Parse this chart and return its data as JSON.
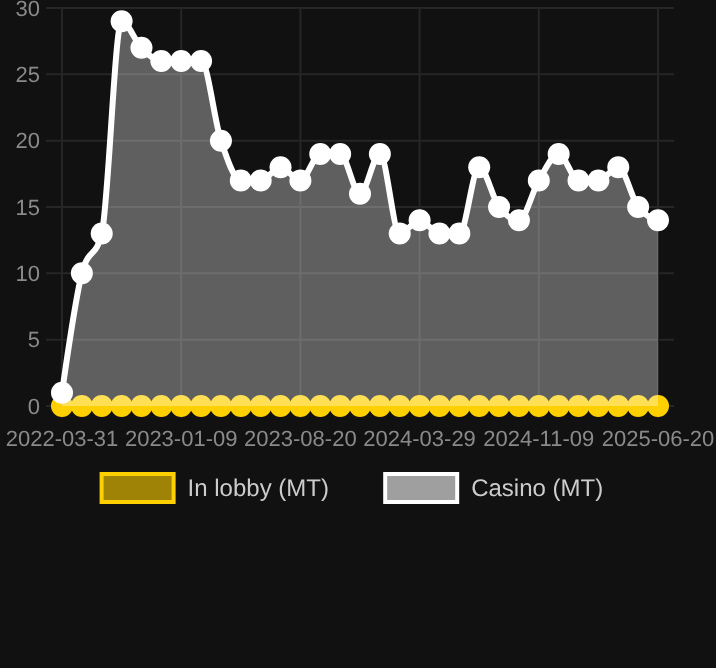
{
  "chart_data": {
    "type": "area",
    "categories": [
      "2022-03-31",
      null,
      null,
      null,
      null,
      null,
      "2023-01-09",
      null,
      null,
      null,
      null,
      null,
      "2023-08-20",
      null,
      null,
      null,
      null,
      null,
      "2024-03-29",
      null,
      null,
      null,
      null,
      null,
      "2024-11-09",
      null,
      null,
      null,
      null,
      null,
      "2025-06-20"
    ],
    "series": [
      {
        "name": "In lobby (MT)",
        "type": "scatter",
        "color": "#ffd000",
        "values": [
          0,
          0,
          0,
          0,
          0,
          0,
          0,
          0,
          0,
          0,
          0,
          0,
          0,
          0,
          0,
          0,
          0,
          0,
          0,
          0,
          0,
          0,
          0,
          0,
          0,
          0,
          0,
          0,
          0,
          0,
          0
        ]
      },
      {
        "name": "Casino (MT)",
        "color": "#ffffff",
        "values": [
          1,
          10,
          13,
          29,
          27,
          26,
          26,
          26,
          20,
          17,
          17,
          18,
          17,
          19,
          19,
          16,
          19,
          13,
          14,
          13,
          13,
          18,
          15,
          14,
          17,
          19,
          17,
          17,
          18,
          15,
          14
        ]
      }
    ],
    "ylim": [
      0,
      30
    ],
    "yticks": [
      0,
      5,
      10,
      15,
      20,
      25,
      30
    ],
    "grid": true,
    "legend": "bottom",
    "marker": "circle"
  }
}
